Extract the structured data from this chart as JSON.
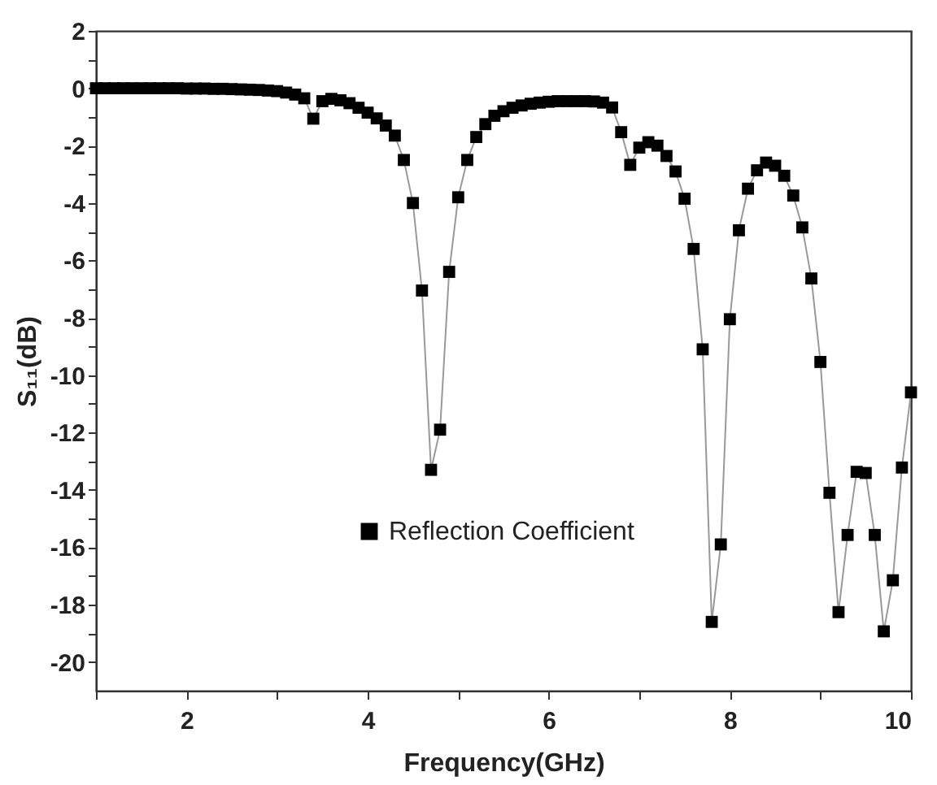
{
  "chart_data": {
    "type": "line",
    "xlabel": "Frequency(GHz)",
    "ylabel": "S₁₁(dB)",
    "xlim": [
      1,
      10
    ],
    "ylim": [
      -21,
      2
    ],
    "xticks": [
      {
        "value": 1,
        "label": null
      },
      2,
      {
        "value": 3,
        "label": null
      },
      4,
      {
        "value": 5,
        "label": null
      },
      6,
      {
        "value": 7,
        "label": null
      },
      8,
      {
        "value": 9,
        "label": null
      },
      10
    ],
    "yticks": [
      -20,
      {
        "value": -19,
        "label": null
      },
      -18,
      {
        "value": -17,
        "label": null
      },
      -16,
      {
        "value": -15,
        "label": null
      },
      -14,
      {
        "value": -13,
        "label": null
      },
      -12,
      {
        "value": -11,
        "label": null
      },
      -10,
      {
        "value": -9,
        "label": null
      },
      -8,
      {
        "value": -7,
        "label": null
      },
      -6,
      {
        "value": -5,
        "label": null
      },
      -4,
      {
        "value": -3,
        "label": null
      },
      -2,
      {
        "value": -1,
        "label": null
      },
      0,
      {
        "value": 1,
        "label": null
      },
      2
    ],
    "grid": false,
    "legend": "bottom left",
    "marker": "square",
    "line_style": "solid",
    "series": [
      {
        "name": "Reflection Coefficient",
        "color": "#000000",
        "x": [
          1.0,
          1.1,
          1.2,
          1.3,
          1.4,
          1.5,
          1.6,
          1.7,
          1.8,
          1.9,
          2.0,
          2.1,
          2.2,
          2.3,
          2.4,
          2.5,
          2.6,
          2.7,
          2.8,
          2.9,
          3.0,
          3.1,
          3.2,
          3.3,
          3.4,
          3.5,
          3.6,
          3.7,
          3.8,
          3.9,
          4.0,
          4.1,
          4.2,
          4.3,
          4.4,
          4.5,
          4.6,
          4.7,
          4.8,
          4.9,
          5.0,
          5.1,
          5.2,
          5.3,
          5.4,
          5.5,
          5.6,
          5.7,
          5.8,
          5.9,
          6.0,
          6.1,
          6.2,
          6.3,
          6.4,
          6.5,
          6.6,
          6.7,
          6.8,
          6.9,
          7.0,
          7.1,
          7.2,
          7.3,
          7.4,
          7.5,
          7.6,
          7.7,
          7.8,
          7.9,
          8.0,
          8.1,
          8.2,
          8.3,
          8.4,
          8.5,
          8.6,
          8.7,
          8.8,
          8.9,
          9.0,
          9.1,
          9.2,
          9.3,
          9.4,
          9.5,
          9.6,
          9.7,
          9.8,
          9.9,
          10.0
        ],
        "values": [
          0.0,
          0.0,
          0.0,
          0.0,
          0.0,
          0.0,
          0.0,
          0.0,
          0.0,
          0.0,
          -0.01,
          -0.01,
          -0.01,
          -0.02,
          -0.02,
          -0.03,
          -0.04,
          -0.05,
          -0.06,
          -0.08,
          -0.1,
          -0.15,
          -0.22,
          -0.35,
          -1.06,
          -0.45,
          -0.37,
          -0.42,
          -0.52,
          -0.68,
          -0.85,
          -1.05,
          -1.3,
          -1.65,
          -2.5,
          -4.0,
          -7.05,
          -13.3,
          -11.9,
          -6.4,
          -3.8,
          -2.5,
          -1.7,
          -1.25,
          -0.96,
          -0.8,
          -0.68,
          -0.6,
          -0.54,
          -0.5,
          -0.47,
          -0.45,
          -0.45,
          -0.45,
          -0.45,
          -0.46,
          -0.5,
          -0.67,
          -1.53,
          -2.67,
          -2.07,
          -1.88,
          -2.0,
          -2.36,
          -2.9,
          -3.85,
          -5.6,
          -9.1,
          -18.6,
          -15.9,
          -8.05,
          -4.95,
          -3.5,
          -2.86,
          -2.59,
          -2.7,
          -3.05,
          -3.74,
          -4.85,
          -6.63,
          -9.54,
          -14.1,
          -18.26,
          -15.57,
          -13.37,
          -13.41,
          -15.57,
          -18.93,
          -17.15,
          -13.22,
          -10.6
        ]
      }
    ]
  }
}
